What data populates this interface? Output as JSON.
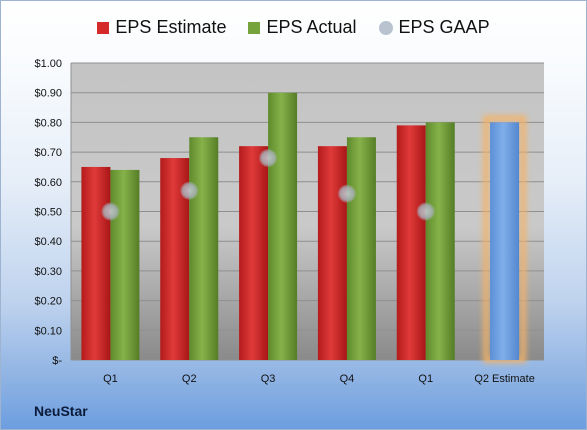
{
  "company": "NeuStar",
  "colors": {
    "estimate": "#d42a2a",
    "actual": "#77a33d",
    "gaap": "#b8c3cf",
    "future": "#6f9fe0",
    "future_glow": "#f4b367"
  },
  "chart_data": {
    "type": "bar",
    "categories": [
      "Q1",
      "Q2",
      "Q3",
      "Q4",
      "Q1",
      "Q2 Estimate"
    ],
    "series": [
      {
        "name": "EPS Estimate",
        "values": [
          0.65,
          0.68,
          0.72,
          0.72,
          0.79,
          null
        ]
      },
      {
        "name": "EPS Actual",
        "values": [
          0.64,
          0.75,
          0.9,
          0.75,
          0.8,
          0.8
        ]
      },
      {
        "name": "EPS GAAP",
        "values": [
          0.5,
          0.57,
          0.68,
          0.56,
          0.5,
          null
        ]
      }
    ],
    "legend_position": "top",
    "y_ticks": [
      "$-",
      "$0.10",
      "$0.20",
      "$0.30",
      "$0.40",
      "$0.50",
      "$0.60",
      "$0.70",
      "$0.80",
      "$0.90",
      "$1.00"
    ],
    "ylim": [
      0,
      1.0
    ],
    "grid": true
  }
}
